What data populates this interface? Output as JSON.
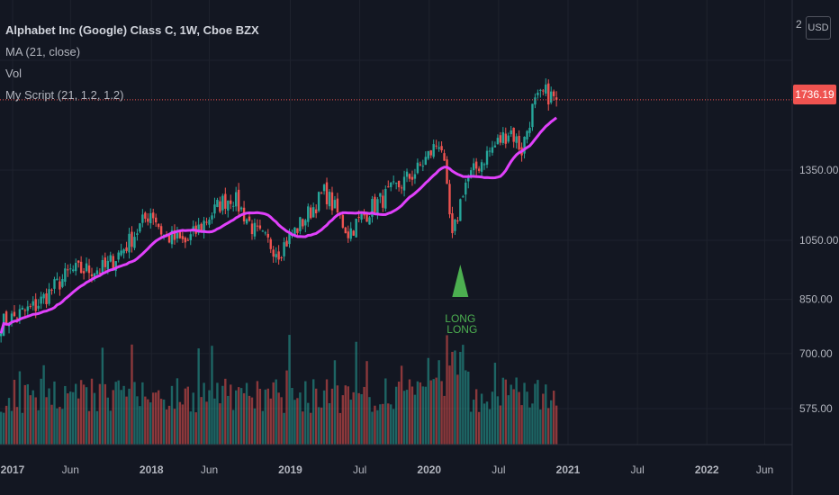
{
  "chart": {
    "title": "Alphabet Inc (Google) Class C, 1W, Cboe BZX",
    "indicators": [
      "MA (21, close)",
      "Vol",
      "My Script (21, 1.2, 1.2)"
    ],
    "currency_button": "USD",
    "last_price_label": "1736.19"
  },
  "colors": {
    "background": "#131722",
    "up": "#26a69a",
    "down": "#ef5350",
    "ma": "#e040fb",
    "signal": "#4caf50",
    "grid": "#1e222d",
    "text": "#b2b5be"
  },
  "chart_data": {
    "type": "candlestick",
    "title": "Alphabet Inc (Google) Class C, 1W, Cboe BZX",
    "price_axis": {
      "scale": "log",
      "ticks": [
        "575.00",
        "700.00",
        "850.00",
        "1050.00",
        "1350.00"
      ],
      "top_tick_partial": "2",
      "range": [
        480,
        2150
      ]
    },
    "time_axis": {
      "labels": [
        "2017",
        "Jun",
        "2018",
        "Jun",
        "2019",
        "Jul",
        "2020",
        "Jul",
        "2021",
        "Jul",
        "2022",
        "Jun"
      ]
    },
    "series": [
      {
        "name": "MA (21, close)",
        "type": "line",
        "color": "#e040fb"
      },
      {
        "name": "Vol",
        "type": "bar"
      }
    ],
    "price_path": [
      [
        "2016-12",
        780
      ],
      [
        "2017-03",
        830
      ],
      [
        "2017-06",
        940
      ],
      [
        "2017-09",
        950
      ],
      [
        "2017-11",
        1040
      ],
      [
        "2018-01",
        1170
      ],
      [
        "2018-02",
        1070
      ],
      [
        "2018-04",
        1040
      ],
      [
        "2018-07",
        1200
      ],
      [
        "2018-08",
        1230
      ],
      [
        "2018-10",
        1080
      ],
      [
        "2018-12",
        1010
      ],
      [
        "2019-02",
        1120
      ],
      [
        "2019-04",
        1250
      ],
      [
        "2019-06",
        1080
      ],
      [
        "2019-08",
        1180
      ],
      [
        "2019-10",
        1260
      ],
      [
        "2019-12",
        1350
      ],
      [
        "2020-02",
        1510
      ],
      [
        "2020-03",
        1050
      ],
      [
        "2020-04",
        1280
      ],
      [
        "2020-06",
        1430
      ],
      [
        "2020-08",
        1560
      ],
      [
        "2020-09",
        1450
      ],
      [
        "2020-10",
        1700
      ],
      [
        "2020-11",
        1780
      ],
      [
        "2020-12",
        1736.19
      ]
    ],
    "signal": {
      "label": "LONG",
      "date": "2020-04",
      "shape": "triangle-up"
    },
    "last_price": 1736.19,
    "grid": true
  }
}
